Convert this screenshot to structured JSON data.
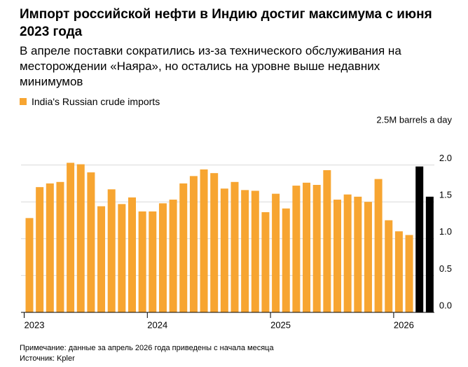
{
  "chart_data": {
    "type": "bar",
    "title": "Импорт российской нефти в Индию достиг максимума с июня 2023 года",
    "subtitle": "В апреле поставки сократились из-за технического обслуживания на месторождении «Наяра», но остались на уровне выше недавних минимумов",
    "note": "Примечание: данные за апрель 2026 года приведены с начала месяца",
    "source": "Источник: Kpler",
    "categories": [
      "2023",
      null,
      null,
      null,
      null,
      null,
      null,
      null,
      null,
      null,
      null,
      null,
      "2024",
      null,
      null,
      null,
      null,
      null,
      null,
      null,
      null,
      null,
      null,
      null,
      "2025",
      null,
      null,
      null,
      null,
      null,
      null,
      null,
      null,
      null,
      null,
      null,
      "2026",
      null,
      null,
      null
    ],
    "series": [
      {
        "name": "India's Russian crude imports",
        "color": "#f7a531",
        "values": [
          1.28,
          1.7,
          1.75,
          1.77,
          2.03,
          2.01,
          1.9,
          1.44,
          1.67,
          1.47,
          1.56,
          1.37,
          1.37,
          1.48,
          1.53,
          1.75,
          1.85,
          1.94,
          1.89,
          1.68,
          1.77,
          1.66,
          1.65,
          1.36,
          1.61,
          1.41,
          1.72,
          1.76,
          1.73,
          1.93,
          1.53,
          1.6,
          1.57,
          1.5,
          1.81,
          1.25,
          1.1,
          1.05,
          1.98,
          1.57
        ],
        "colors": [
          "#f7a531",
          "#f7a531",
          "#f7a531",
          "#f7a531",
          "#f7a531",
          "#f7a531",
          "#f7a531",
          "#f7a531",
          "#f7a531",
          "#f7a531",
          "#f7a531",
          "#f7a531",
          "#f7a531",
          "#f7a531",
          "#f7a531",
          "#f7a531",
          "#f7a531",
          "#f7a531",
          "#f7a531",
          "#f7a531",
          "#f7a531",
          "#f7a531",
          "#f7a531",
          "#f7a531",
          "#f7a531",
          "#f7a531",
          "#f7a531",
          "#f7a531",
          "#f7a531",
          "#f7a531",
          "#f7a531",
          "#f7a531",
          "#f7a531",
          "#f7a531",
          "#f7a531",
          "#f7a531",
          "#f7a531",
          "#f7a531",
          "#000000",
          "#000000"
        ]
      }
    ],
    "ylim": [
      0,
      2.5
    ],
    "yticks": [
      {
        "value": 0,
        "label": "0.0"
      },
      {
        "value": 0.5,
        "label": "0.5"
      },
      {
        "value": 1,
        "label": "1.0"
      },
      {
        "value": 1.5,
        "label": "1.5"
      },
      {
        "value": 2,
        "label": "2.0"
      },
      {
        "value": 2.5,
        "label": "2.5M barrels a day"
      }
    ],
    "grid": true
  }
}
